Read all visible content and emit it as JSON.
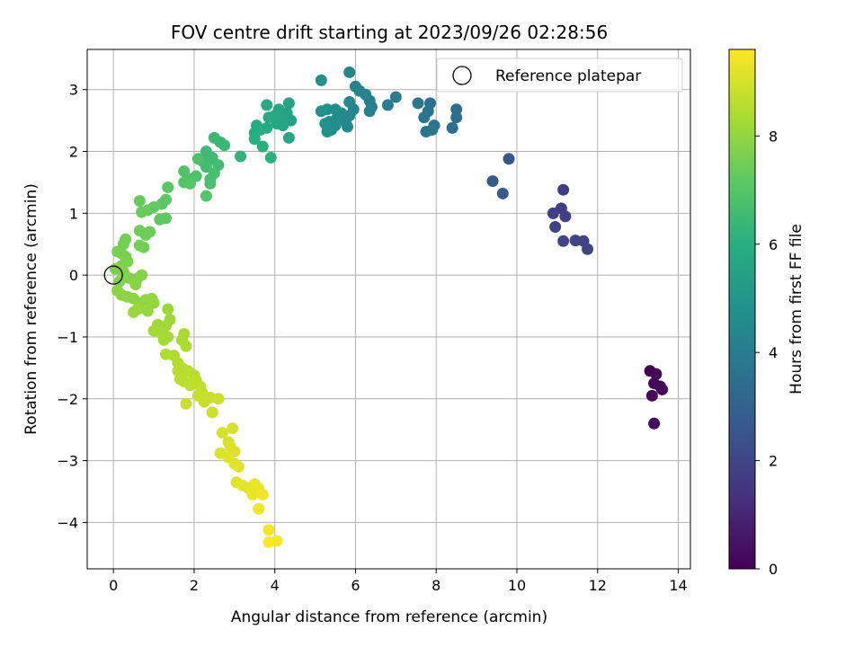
{
  "chart_data": {
    "type": "scatter",
    "title": "FOV centre drift starting at 2023/09/26 02:28:56",
    "xlabel": "Angular distance from reference (arcmin)",
    "ylabel": "Rotation from reference (arcmin)",
    "xlim": [
      -0.65,
      14.3
    ],
    "ylim": [
      -4.75,
      3.65
    ],
    "xticks": [
      0,
      2,
      4,
      6,
      8,
      10,
      12,
      14
    ],
    "yticks": [
      -4,
      -3,
      -2,
      -1,
      0,
      1,
      2,
      3
    ],
    "grid": true,
    "legend": {
      "position": "top-right",
      "entries": [
        "Reference platepar"
      ]
    },
    "reference_point": {
      "x": 0,
      "y": 0
    },
    "colorbar": {
      "label": "Hours from first FF file",
      "colormap": "viridis",
      "range": [
        0,
        9.6
      ],
      "ticks": [
        0,
        2,
        4,
        6,
        8
      ]
    },
    "series": [
      {
        "points": [
          {
            "x": 13.45,
            "y": -1.6,
            "c": 0.1
          },
          {
            "x": 13.3,
            "y": -1.55,
            "c": 0.1
          },
          {
            "x": 13.4,
            "y": -1.75,
            "c": 0.15
          },
          {
            "x": 13.55,
            "y": -1.8,
            "c": 0.15
          },
          {
            "x": 13.35,
            "y": -1.95,
            "c": 0.2
          },
          {
            "x": 13.6,
            "y": -1.85,
            "c": 0.2
          },
          {
            "x": 13.4,
            "y": -2.4,
            "c": 0.25
          },
          {
            "x": 11.15,
            "y": 1.38,
            "c": 1.7
          },
          {
            "x": 11.1,
            "y": 1.08,
            "c": 1.75
          },
          {
            "x": 10.9,
            "y": 1.0,
            "c": 1.8
          },
          {
            "x": 11.2,
            "y": 0.95,
            "c": 1.8
          },
          {
            "x": 10.95,
            "y": 0.78,
            "c": 1.85
          },
          {
            "x": 11.15,
            "y": 0.55,
            "c": 1.9
          },
          {
            "x": 11.45,
            "y": 0.56,
            "c": 1.9
          },
          {
            "x": 11.65,
            "y": 0.55,
            "c": 1.95
          },
          {
            "x": 11.75,
            "y": 0.42,
            "c": 1.95
          },
          {
            "x": 9.8,
            "y": 1.88,
            "c": 2.6
          },
          {
            "x": 9.4,
            "y": 1.52,
            "c": 2.65
          },
          {
            "x": 9.65,
            "y": 1.32,
            "c": 2.7
          },
          {
            "x": 8.5,
            "y": 2.68,
            "c": 3.4
          },
          {
            "x": 8.5,
            "y": 2.55,
            "c": 3.4
          },
          {
            "x": 8.4,
            "y": 2.38,
            "c": 3.5
          },
          {
            "x": 7.95,
            "y": 2.42,
            "c": 3.55
          },
          {
            "x": 7.85,
            "y": 2.78,
            "c": 3.6
          },
          {
            "x": 7.8,
            "y": 2.65,
            "c": 3.6
          },
          {
            "x": 7.7,
            "y": 2.55,
            "c": 3.7
          },
          {
            "x": 7.75,
            "y": 2.32,
            "c": 3.7
          },
          {
            "x": 7.9,
            "y": 2.35,
            "c": 3.75
          },
          {
            "x": 7.55,
            "y": 2.78,
            "c": 3.8
          },
          {
            "x": 7.0,
            "y": 2.88,
            "c": 3.95
          },
          {
            "x": 6.8,
            "y": 2.75,
            "c": 4.0
          },
          {
            "x": 6.35,
            "y": 2.82,
            "c": 4.1
          },
          {
            "x": 6.4,
            "y": 2.72,
            "c": 4.1
          },
          {
            "x": 6.35,
            "y": 2.65,
            "c": 4.15
          },
          {
            "x": 6.25,
            "y": 2.92,
            "c": 4.2
          },
          {
            "x": 6.0,
            "y": 3.05,
            "c": 4.25
          },
          {
            "x": 6.1,
            "y": 2.98,
            "c": 4.25
          },
          {
            "x": 5.85,
            "y": 3.28,
            "c": 4.3
          },
          {
            "x": 5.95,
            "y": 2.68,
            "c": 4.35
          },
          {
            "x": 5.85,
            "y": 2.58,
            "c": 4.4
          },
          {
            "x": 5.8,
            "y": 2.4,
            "c": 4.45
          },
          {
            "x": 5.85,
            "y": 2.8,
            "c": 4.45
          },
          {
            "x": 5.75,
            "y": 2.48,
            "c": 4.5
          },
          {
            "x": 5.65,
            "y": 2.62,
            "c": 4.55
          },
          {
            "x": 5.55,
            "y": 2.55,
            "c": 4.6
          },
          {
            "x": 5.5,
            "y": 2.68,
            "c": 4.6
          },
          {
            "x": 5.4,
            "y": 2.35,
            "c": 4.65
          },
          {
            "x": 5.5,
            "y": 2.42,
            "c": 4.7
          },
          {
            "x": 5.35,
            "y": 2.48,
            "c": 4.7
          },
          {
            "x": 5.3,
            "y": 2.68,
            "c": 4.75
          },
          {
            "x": 5.25,
            "y": 2.45,
            "c": 4.8
          },
          {
            "x": 5.3,
            "y": 2.32,
            "c": 4.8
          },
          {
            "x": 5.15,
            "y": 2.65,
            "c": 4.85
          },
          {
            "x": 5.15,
            "y": 3.15,
            "c": 4.9
          },
          {
            "x": 4.4,
            "y": 2.5,
            "c": 5.5
          },
          {
            "x": 4.35,
            "y": 2.78,
            "c": 5.5
          },
          {
            "x": 4.3,
            "y": 2.62,
            "c": 5.55
          },
          {
            "x": 4.2,
            "y": 2.55,
            "c": 5.6
          },
          {
            "x": 4.1,
            "y": 2.68,
            "c": 5.6
          },
          {
            "x": 4.2,
            "y": 2.42,
            "c": 5.65
          },
          {
            "x": 4.35,
            "y": 2.22,
            "c": 5.7
          },
          {
            "x": 4.05,
            "y": 2.45,
            "c": 5.7
          },
          {
            "x": 4.0,
            "y": 2.58,
            "c": 5.75
          },
          {
            "x": 3.8,
            "y": 2.75,
            "c": 5.8
          },
          {
            "x": 3.85,
            "y": 2.55,
            "c": 5.8
          },
          {
            "x": 3.8,
            "y": 2.38,
            "c": 5.85
          },
          {
            "x": 3.65,
            "y": 2.35,
            "c": 5.9
          },
          {
            "x": 3.55,
            "y": 2.42,
            "c": 5.9
          },
          {
            "x": 3.5,
            "y": 2.3,
            "c": 5.95
          },
          {
            "x": 3.5,
            "y": 2.2,
            "c": 6.0
          },
          {
            "x": 3.7,
            "y": 2.08,
            "c": 6.05
          },
          {
            "x": 3.9,
            "y": 1.9,
            "c": 6.1
          },
          {
            "x": 3.15,
            "y": 1.92,
            "c": 6.2
          },
          {
            "x": 2.75,
            "y": 2.1,
            "c": 6.4
          },
          {
            "x": 2.65,
            "y": 2.15,
            "c": 6.4
          },
          {
            "x": 2.5,
            "y": 2.22,
            "c": 6.45
          },
          {
            "x": 2.3,
            "y": 2.0,
            "c": 6.5
          },
          {
            "x": 2.35,
            "y": 1.85,
            "c": 6.5
          },
          {
            "x": 2.45,
            "y": 1.9,
            "c": 6.55
          },
          {
            "x": 2.6,
            "y": 1.78,
            "c": 6.6
          },
          {
            "x": 2.2,
            "y": 1.85,
            "c": 6.6
          },
          {
            "x": 2.3,
            "y": 1.75,
            "c": 6.65
          },
          {
            "x": 2.5,
            "y": 1.65,
            "c": 6.7
          },
          {
            "x": 2.4,
            "y": 1.55,
            "c": 6.7
          },
          {
            "x": 2.4,
            "y": 1.48,
            "c": 6.75
          },
          {
            "x": 2.1,
            "y": 1.88,
            "c": 6.8
          },
          {
            "x": 2.05,
            "y": 1.6,
            "c": 6.85
          },
          {
            "x": 1.9,
            "y": 1.55,
            "c": 6.9
          },
          {
            "x": 1.75,
            "y": 1.68,
            "c": 6.9
          },
          {
            "x": 1.75,
            "y": 1.5,
            "c": 6.95
          },
          {
            "x": 1.9,
            "y": 1.48,
            "c": 7.0
          },
          {
            "x": 2.3,
            "y": 1.28,
            "c": 7.0
          },
          {
            "x": 1.35,
            "y": 1.42,
            "c": 7.1
          },
          {
            "x": 1.3,
            "y": 1.22,
            "c": 7.15
          },
          {
            "x": 1.2,
            "y": 1.15,
            "c": 7.15
          },
          {
            "x": 1.3,
            "y": 0.92,
            "c": 7.2
          },
          {
            "x": 1.15,
            "y": 0.9,
            "c": 7.2
          },
          {
            "x": 1.0,
            "y": 1.1,
            "c": 7.25
          },
          {
            "x": 0.85,
            "y": 1.05,
            "c": 7.3
          },
          {
            "x": 0.65,
            "y": 1.2,
            "c": 7.3
          },
          {
            "x": 0.7,
            "y": 1.02,
            "c": 7.35
          },
          {
            "x": 0.9,
            "y": 0.7,
            "c": 7.4
          },
          {
            "x": 0.8,
            "y": 0.65,
            "c": 7.4
          },
          {
            "x": 0.65,
            "y": 0.72,
            "c": 7.45
          },
          {
            "x": 0.75,
            "y": 0.45,
            "c": 7.45
          },
          {
            "x": 0.65,
            "y": 0.48,
            "c": 7.5
          },
          {
            "x": 0.3,
            "y": 0.58,
            "c": 7.5
          },
          {
            "x": 0.25,
            "y": 0.5,
            "c": 7.55
          },
          {
            "x": 0.1,
            "y": 0.38,
            "c": 7.55
          },
          {
            "x": 0.2,
            "y": 0.35,
            "c": 7.6
          },
          {
            "x": 0.3,
            "y": 0.3,
            "c": 7.6
          },
          {
            "x": 0.35,
            "y": 0.22,
            "c": 7.65
          },
          {
            "x": 0.2,
            "y": 0.15,
            "c": 7.65
          },
          {
            "x": 0.05,
            "y": 0.1,
            "c": 7.7
          },
          {
            "x": 0.25,
            "y": 0.05,
            "c": 7.7
          },
          {
            "x": 0.4,
            "y": -0.05,
            "c": 7.75
          },
          {
            "x": 0.15,
            "y": -0.1,
            "c": 7.75
          },
          {
            "x": 0.6,
            "y": -0.05,
            "c": 7.8
          },
          {
            "x": 0.7,
            "y": 0.0,
            "c": 7.8
          },
          {
            "x": 0.55,
            "y": -0.15,
            "c": 7.85
          },
          {
            "x": 0.1,
            "y": -0.25,
            "c": 7.85
          },
          {
            "x": 0.2,
            "y": -0.32,
            "c": 7.9
          },
          {
            "x": 0.35,
            "y": -0.35,
            "c": 7.9
          },
          {
            "x": 0.5,
            "y": -0.38,
            "c": 7.95
          },
          {
            "x": 0.65,
            "y": -0.45,
            "c": 7.95
          },
          {
            "x": 0.8,
            "y": -0.4,
            "c": 8.0
          },
          {
            "x": 0.95,
            "y": -0.38,
            "c": 8.0
          },
          {
            "x": 1.0,
            "y": -0.45,
            "c": 8.05
          },
          {
            "x": 0.85,
            "y": -0.58,
            "c": 8.05
          },
          {
            "x": 0.6,
            "y": -0.55,
            "c": 8.1
          },
          {
            "x": 0.5,
            "y": -0.6,
            "c": 8.1
          },
          {
            "x": 1.35,
            "y": -0.55,
            "c": 8.15
          },
          {
            "x": 1.4,
            "y": -0.72,
            "c": 8.15
          },
          {
            "x": 1.3,
            "y": -0.82,
            "c": 8.2
          },
          {
            "x": 1.1,
            "y": -0.8,
            "c": 8.2
          },
          {
            "x": 1.0,
            "y": -0.9,
            "c": 8.25
          },
          {
            "x": 1.2,
            "y": -0.95,
            "c": 8.25
          },
          {
            "x": 1.35,
            "y": -1.0,
            "c": 8.3
          },
          {
            "x": 1.25,
            "y": -1.05,
            "c": 8.3
          },
          {
            "x": 1.75,
            "y": -0.95,
            "c": 8.35
          },
          {
            "x": 1.7,
            "y": -1.05,
            "c": 8.35
          },
          {
            "x": 1.8,
            "y": -1.15,
            "c": 8.4
          },
          {
            "x": 1.5,
            "y": -1.3,
            "c": 8.4
          },
          {
            "x": 1.3,
            "y": -1.28,
            "c": 8.45
          },
          {
            "x": 1.6,
            "y": -1.42,
            "c": 8.45
          },
          {
            "x": 1.7,
            "y": -1.5,
            "c": 8.5
          },
          {
            "x": 1.6,
            "y": -1.55,
            "c": 8.5
          },
          {
            "x": 1.85,
            "y": -1.55,
            "c": 8.55
          },
          {
            "x": 2.0,
            "y": -1.62,
            "c": 8.55
          },
          {
            "x": 1.65,
            "y": -1.68,
            "c": 8.6
          },
          {
            "x": 1.75,
            "y": -1.72,
            "c": 8.6
          },
          {
            "x": 1.9,
            "y": -1.78,
            "c": 8.65
          },
          {
            "x": 2.05,
            "y": -1.7,
            "c": 8.65
          },
          {
            "x": 2.15,
            "y": -1.8,
            "c": 8.7
          },
          {
            "x": 2.2,
            "y": -1.9,
            "c": 8.7
          },
          {
            "x": 2.1,
            "y": -1.95,
            "c": 8.75
          },
          {
            "x": 2.4,
            "y": -1.98,
            "c": 8.75
          },
          {
            "x": 2.25,
            "y": -2.05,
            "c": 8.8
          },
          {
            "x": 1.8,
            "y": -2.08,
            "c": 8.8
          },
          {
            "x": 2.6,
            "y": -2.0,
            "c": 8.85
          },
          {
            "x": 2.45,
            "y": -2.22,
            "c": 8.85
          },
          {
            "x": 2.7,
            "y": -2.55,
            "c": 9.0
          },
          {
            "x": 2.95,
            "y": -2.48,
            "c": 9.0
          },
          {
            "x": 2.85,
            "y": -2.7,
            "c": 9.05
          },
          {
            "x": 2.65,
            "y": -2.88,
            "c": 9.05
          },
          {
            "x": 2.9,
            "y": -2.78,
            "c": 9.1
          },
          {
            "x": 3.0,
            "y": -2.85,
            "c": 9.1
          },
          {
            "x": 2.85,
            "y": -2.95,
            "c": 9.15
          },
          {
            "x": 3.0,
            "y": -3.05,
            "c": 9.15
          },
          {
            "x": 3.1,
            "y": -3.1,
            "c": 9.2
          },
          {
            "x": 3.05,
            "y": -3.35,
            "c": 9.2
          },
          {
            "x": 3.2,
            "y": -3.4,
            "c": 9.25
          },
          {
            "x": 3.35,
            "y": -3.45,
            "c": 9.25
          },
          {
            "x": 3.5,
            "y": -3.38,
            "c": 9.3
          },
          {
            "x": 3.55,
            "y": -3.5,
            "c": 9.3
          },
          {
            "x": 3.45,
            "y": -3.55,
            "c": 9.35
          },
          {
            "x": 3.6,
            "y": -3.45,
            "c": 9.35
          },
          {
            "x": 3.7,
            "y": -3.55,
            "c": 9.4
          },
          {
            "x": 3.6,
            "y": -3.78,
            "c": 9.4
          },
          {
            "x": 3.85,
            "y": -4.12,
            "c": 9.5
          },
          {
            "x": 4.05,
            "y": -4.3,
            "c": 9.5
          },
          {
            "x": 3.85,
            "y": -4.32,
            "c": 9.55
          }
        ]
      }
    ]
  }
}
